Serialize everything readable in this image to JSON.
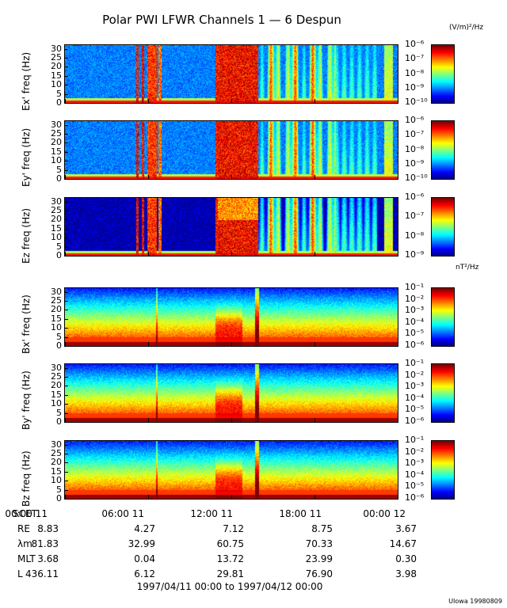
{
  "chart_data": {
    "type": "heatmap",
    "title": "Polar PWI LFWR Channels 1 — 6 Despun",
    "units_electric": "(V/m)²/Hz",
    "units_magnetic": "nT²/Hz",
    "yticks": [
      "0",
      "5",
      "10",
      "15",
      "20",
      "25",
      "30"
    ],
    "ylim": [
      0,
      32
    ],
    "xlim_hours": [
      0,
      24
    ],
    "panels": [
      {
        "ylabel": "Ex' freq (Hz)",
        "type": "E",
        "cbar": [
          "10⁻⁶",
          "10⁻⁷",
          "10⁻⁸",
          "10⁻⁹",
          "10⁻¹⁰"
        ]
      },
      {
        "ylabel": "Ey' freq (Hz)",
        "type": "E",
        "cbar": [
          "10⁻⁶",
          "10⁻⁷",
          "10⁻⁸",
          "10⁻⁹",
          "10⁻¹⁰"
        ]
      },
      {
        "ylabel": "Ez freq (Hz)",
        "type": "Ez",
        "cbar": [
          "10⁻⁶",
          "10⁻⁷",
          "10⁻⁸",
          "10⁻⁹"
        ]
      },
      {
        "ylabel": "Bx' freq (Hz)",
        "type": "B",
        "cbar": [
          "10⁻¹",
          "10⁻²",
          "10⁻³",
          "10⁻⁴",
          "10⁻⁵",
          "10⁻⁶"
        ]
      },
      {
        "ylabel": "By' freq (Hz)",
        "type": "B",
        "cbar": [
          "10⁻¹",
          "10⁻²",
          "10⁻³",
          "10⁻⁴",
          "10⁻⁵",
          "10⁻⁶"
        ]
      },
      {
        "ylabel": "Bz freq (Hz)",
        "type": "B",
        "cbar": [
          "10⁻¹",
          "10⁻²",
          "10⁻³",
          "10⁻⁴",
          "10⁻⁵",
          "10⁻⁶"
        ]
      }
    ],
    "ephemeris": {
      "rows": [
        {
          "label": "SCET",
          "values": [
            "00:00 11",
            "06:00 11",
            "12:00 11",
            "18:00 11",
            "00:00 12"
          ]
        },
        {
          "label": "RE",
          "values": [
            "8.83",
            "4.27",
            "7.12",
            "8.75",
            "3.67"
          ]
        },
        {
          "label": "λm",
          "values": [
            "81.83",
            "32.99",
            "60.75",
            "70.33",
            "14.67"
          ]
        },
        {
          "label": "MLT",
          "values": [
            "3.68",
            "0.04",
            "13.72",
            "23.99",
            "0.30"
          ]
        },
        {
          "label": "L",
          "values": [
            "436.11",
            "6.12",
            "29.81",
            "76.90",
            "3.98"
          ]
        }
      ]
    },
    "date_range": "1997/04/11 00:00 to 1997/04/12 00:00",
    "credit": "UIowa 19980809"
  }
}
